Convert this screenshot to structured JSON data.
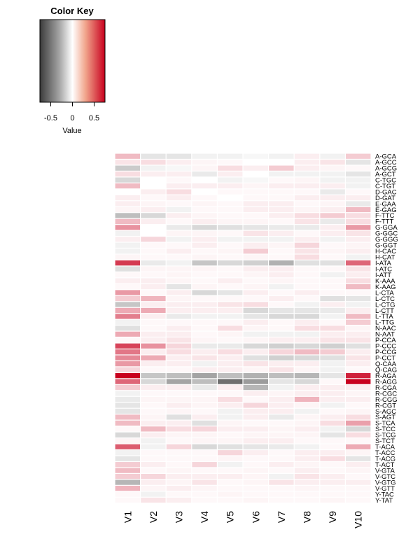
{
  "chart_data": {
    "type": "heatmap",
    "color_key": {
      "title": "Color Key",
      "xlabel": "Value",
      "ticks": [
        -0.5,
        0,
        0.5
      ],
      "tick_labels": [
        "-0.5",
        "0",
        "0.5"
      ],
      "range": [
        -0.75,
        0.75
      ],
      "low_color": "#3b3b3b",
      "mid_color": "#ffffff",
      "high_color": "#c8001e"
    },
    "columns": [
      "V1",
      "V2",
      "V3",
      "V4",
      "V5",
      "V6",
      "V7",
      "V8",
      "V9",
      "V10"
    ],
    "rows": [
      "A-GCA",
      "A-GCC",
      "A-GCG",
      "A-GCT",
      "C-TGC",
      "C-TGT",
      "D-GAC",
      "D-GAT",
      "E-GAA",
      "E-GAG",
      "F-TTC",
      "F-TTT",
      "G-GGA",
      "G-GGC",
      "G-GGG",
      "G-GGT",
      "H-CAC",
      "H-CAT",
      "I-ATA",
      "I-ATC",
      "I-ATT",
      "K-AAA",
      "K-AAG",
      "L-CTA",
      "L-CTC",
      "L-CTG",
      "L-CTT",
      "L-TTA",
      "L-TTG",
      "N-AAC",
      "N-AAT",
      "P-CCA",
      "P-CCC",
      "P-CCG",
      "P-CCT",
      "Q-CAA",
      "Q-CAG",
      "R-AGA",
      "R-AGG",
      "R-CGA",
      "R-CGC",
      "R-CGG",
      "R-CGT",
      "S-AGC",
      "S-AGT",
      "S-TCA",
      "S-TCC",
      "S-TCG",
      "S-TCT",
      "T-ACA",
      "T-ACC",
      "T-ACG",
      "T-ACT",
      "V-GTA",
      "V-GTC",
      "V-GTG",
      "V-GTT",
      "Y-TAC",
      "Y-TAT"
    ],
    "values": [
      [
        0.2,
        -0.1,
        -0.1,
        -0.05,
        -0.05,
        -0.03,
        -0.05,
        0.05,
        -0.05,
        0.15
      ],
      [
        0.08,
        0.1,
        0.05,
        0.03,
        0.02,
        0.0,
        0.0,
        0.05,
        0.08,
        -0.1
      ],
      [
        -0.2,
        -0.05,
        -0.03,
        0.03,
        0.1,
        0.05,
        0.15,
        0.05,
        0.03,
        0.02
      ],
      [
        0.1,
        0.05,
        0.05,
        -0.08,
        0.05,
        0.0,
        -0.05,
        -0.05,
        -0.05,
        -0.1
      ],
      [
        -0.15,
        0.0,
        0.02,
        0.0,
        -0.05,
        -0.03,
        0.02,
        0.03,
        -0.05,
        -0.05
      ],
      [
        0.2,
        0.0,
        0.05,
        0.05,
        0.05,
        0.03,
        0.05,
        0.05,
        0.05,
        -0.05
      ],
      [
        0.0,
        0.05,
        0.1,
        0.0,
        0.02,
        0.02,
        0.02,
        0.02,
        -0.08,
        0.02
      ],
      [
        0.05,
        0.02,
        0.05,
        0.02,
        0.0,
        0.02,
        0.02,
        0.05,
        0.05,
        0.05
      ],
      [
        0.05,
        0.03,
        0.02,
        0.03,
        0.02,
        0.05,
        0.05,
        0.02,
        0.03,
        -0.08
      ],
      [
        0.03,
        0.05,
        -0.05,
        0.02,
        0.02,
        0.05,
        0.05,
        0.03,
        0.05,
        0.2
      ],
      [
        -0.25,
        -0.15,
        0.05,
        0.03,
        0.02,
        0.02,
        0.05,
        0.1,
        0.15,
        0.1
      ],
      [
        0.2,
        0.05,
        0.02,
        0.05,
        0.03,
        0.03,
        0.02,
        0.08,
        -0.08,
        0.1
      ],
      [
        0.32,
        0.0,
        -0.08,
        -0.15,
        -0.12,
        -0.1,
        -0.08,
        -0.08,
        0.05,
        0.3
      ],
      [
        -0.05,
        0.0,
        0.03,
        0.03,
        0.02,
        0.08,
        0.05,
        0.02,
        0.05,
        0.08
      ],
      [
        0.05,
        0.12,
        -0.05,
        0.05,
        -0.05,
        -0.05,
        -0.05,
        0.05,
        -0.05,
        0.05
      ],
      [
        -0.05,
        0.02,
        0.02,
        0.05,
        0.02,
        0.05,
        0.03,
        0.12,
        0.02,
        0.03
      ],
      [
        -0.05,
        0.02,
        0.05,
        0.02,
        0.03,
        0.15,
        0.02,
        0.08,
        0.03,
        0.05
      ],
      [
        0.03,
        0.02,
        0.02,
        0.03,
        0.02,
        0.03,
        0.02,
        0.1,
        0.02,
        -0.05
      ],
      [
        0.58,
        -0.08,
        -0.05,
        -0.22,
        -0.15,
        -0.18,
        -0.3,
        -0.12,
        -0.12,
        0.45
      ],
      [
        -0.12,
        0.03,
        0.03,
        0.03,
        0.02,
        0.05,
        0.05,
        0.02,
        0.02,
        0.08
      ],
      [
        0.02,
        0.02,
        0.03,
        0.02,
        0.02,
        0.03,
        0.05,
        0.02,
        -0.05,
        0.05
      ],
      [
        0.05,
        0.05,
        0.03,
        0.02,
        0.05,
        0.02,
        0.03,
        0.02,
        0.02,
        0.1
      ],
      [
        0.02,
        0.05,
        -0.1,
        0.03,
        0.02,
        0.03,
        -0.05,
        0.02,
        0.02,
        0.2
      ],
      [
        0.3,
        0.02,
        0.05,
        -0.15,
        -0.1,
        0.05,
        0.02,
        0.05,
        0.02,
        0.02
      ],
      [
        0.15,
        0.22,
        0.03,
        0.02,
        0.02,
        0.02,
        0.05,
        0.02,
        -0.12,
        -0.1
      ],
      [
        -0.22,
        0.05,
        0.05,
        0.05,
        0.08,
        0.1,
        0.02,
        -0.05,
        0.05,
        -0.05
      ],
      [
        0.25,
        0.25,
        0.05,
        0.05,
        0.05,
        -0.15,
        -0.1,
        -0.1,
        -0.08,
        0.05
      ],
      [
        0.38,
        0.05,
        -0.08,
        -0.05,
        -0.05,
        -0.1,
        -0.15,
        -0.15,
        -0.05,
        0.2
      ],
      [
        -0.05,
        0.02,
        0.02,
        0.02,
        0.02,
        0.05,
        0.02,
        0.05,
        0.02,
        0.15
      ],
      [
        -0.12,
        0.02,
        0.05,
        0.02,
        0.1,
        0.03,
        0.02,
        0.1,
        0.1,
        0.03
      ],
      [
        0.25,
        0.05,
        0.05,
        0.02,
        0.03,
        -0.05,
        -0.05,
        -0.05,
        0.05,
        0.05
      ],
      [
        0.02,
        0.05,
        0.08,
        0.03,
        0.02,
        0.03,
        0.05,
        0.05,
        0.08,
        0.08
      ],
      [
        0.55,
        0.32,
        0.12,
        -0.08,
        -0.08,
        -0.15,
        -0.18,
        -0.15,
        -0.18,
        -0.12
      ],
      [
        0.4,
        0.05,
        0.1,
        0.05,
        0.1,
        0.05,
        0.12,
        0.2,
        0.15,
        0.05
      ],
      [
        0.35,
        0.25,
        0.05,
        0.08,
        0.05,
        -0.12,
        -0.18,
        -0.15,
        -0.12,
        0.08
      ],
      [
        0.3,
        0.05,
        0.05,
        -0.05,
        0.05,
        0.08,
        0.05,
        0.05,
        -0.05,
        0.05
      ],
      [
        0.12,
        0.02,
        0.02,
        0.05,
        0.05,
        0.03,
        0.08,
        0.03,
        -0.05,
        0.02
      ],
      [
        0.75,
        -0.22,
        -0.25,
        -0.35,
        -0.25,
        -0.3,
        -0.25,
        -0.28,
        -0.1,
        0.65
      ],
      [
        0.45,
        -0.15,
        -0.35,
        -0.25,
        -0.55,
        -0.38,
        -0.1,
        -0.15,
        0.02,
        0.78
      ],
      [
        0.15,
        0.05,
        0.05,
        -0.08,
        0.05,
        -0.28,
        -0.05,
        0.05,
        0.05,
        0.05
      ],
      [
        -0.05,
        0.02,
        0.02,
        0.02,
        0.02,
        0.05,
        0.03,
        0.05,
        0.05,
        0.03
      ],
      [
        -0.08,
        0.03,
        0.03,
        0.03,
        0.1,
        0.02,
        0.05,
        0.22,
        0.05,
        0.05
      ],
      [
        -0.1,
        0.02,
        0.05,
        0.03,
        0.05,
        0.12,
        0.05,
        0.03,
        -0.05,
        0.02
      ],
      [
        -0.1,
        0.02,
        0.03,
        0.02,
        -0.05,
        0.05,
        0.05,
        -0.05,
        0.02,
        0.03
      ],
      [
        0.2,
        0.03,
        -0.12,
        0.05,
        -0.05,
        0.05,
        -0.08,
        0.03,
        0.05,
        0.1
      ],
      [
        0.2,
        0.05,
        0.05,
        -0.12,
        0.03,
        0.02,
        0.02,
        0.03,
        0.1,
        0.28
      ],
      [
        0.02,
        0.2,
        0.1,
        0.12,
        0.05,
        0.05,
        0.03,
        0.05,
        -0.05,
        -0.15
      ],
      [
        -0.15,
        0.05,
        0.03,
        0.03,
        0.02,
        0.03,
        0.03,
        0.03,
        -0.1,
        0.1
      ],
      [
        0.03,
        -0.05,
        0.02,
        0.03,
        0.03,
        0.05,
        0.05,
        0.02,
        0.02,
        0.02
      ],
      [
        0.48,
        -0.05,
        0.12,
        -0.15,
        -0.12,
        -0.1,
        -0.08,
        -0.05,
        0.02,
        0.25
      ],
      [
        -0.05,
        0.02,
        0.02,
        0.02,
        0.12,
        0.05,
        0.02,
        0.05,
        0.05,
        0.03
      ],
      [
        -0.1,
        0.02,
        0.02,
        0.02,
        0.03,
        0.02,
        0.02,
        0.05,
        0.1,
        -0.1
      ],
      [
        0.15,
        0.05,
        0.02,
        0.12,
        -0.05,
        0.02,
        0.05,
        0.03,
        0.02,
        0.05
      ],
      [
        0.2,
        0.02,
        0.03,
        0.02,
        0.02,
        0.03,
        0.02,
        0.05,
        0.02,
        0.03
      ],
      [
        0.15,
        0.12,
        0.05,
        0.05,
        0.05,
        0.03,
        -0.05,
        0.08,
        0.05,
        0.02
      ],
      [
        -0.28,
        0.05,
        0.03,
        0.08,
        0.02,
        0.03,
        0.08,
        0.05,
        0.05,
        0.05
      ],
      [
        0.22,
        0.03,
        0.05,
        0.03,
        0.02,
        0.02,
        0.02,
        0.03,
        0.02,
        0.02
      ],
      [
        0.02,
        -0.05,
        0.02,
        0.02,
        0.03,
        0.02,
        0.02,
        0.02,
        0.02,
        0.02
      ],
      [
        0.02,
        0.08,
        0.05,
        0.02,
        0.02,
        0.03,
        0.02,
        0.02,
        0.03,
        0.02
      ]
    ]
  }
}
